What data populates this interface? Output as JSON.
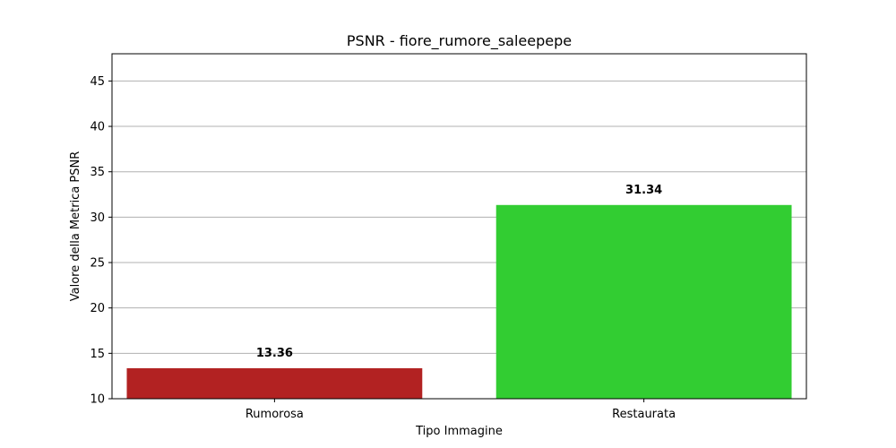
{
  "chart_data": {
    "type": "bar",
    "title": "PSNR - fiore_rumore_saleepepe",
    "xlabel": "Tipo Immagine",
    "ylabel": "Valore della Metrica PSNR",
    "categories": [
      "Rumorosa",
      "Restaurata"
    ],
    "values": [
      13.36,
      31.34
    ],
    "value_labels": [
      "13.36",
      "31.34"
    ],
    "colors": [
      "#b22222",
      "#32cd32"
    ],
    "ylim": [
      10,
      48
    ],
    "yticks": [
      10,
      15,
      20,
      25,
      30,
      35,
      40,
      45
    ],
    "ytick_labels": [
      "10",
      "15",
      "20",
      "25",
      "30",
      "35",
      "40",
      "45"
    ],
    "grid": "y",
    "grid_color": "#b0b0b0",
    "legend": "none"
  }
}
